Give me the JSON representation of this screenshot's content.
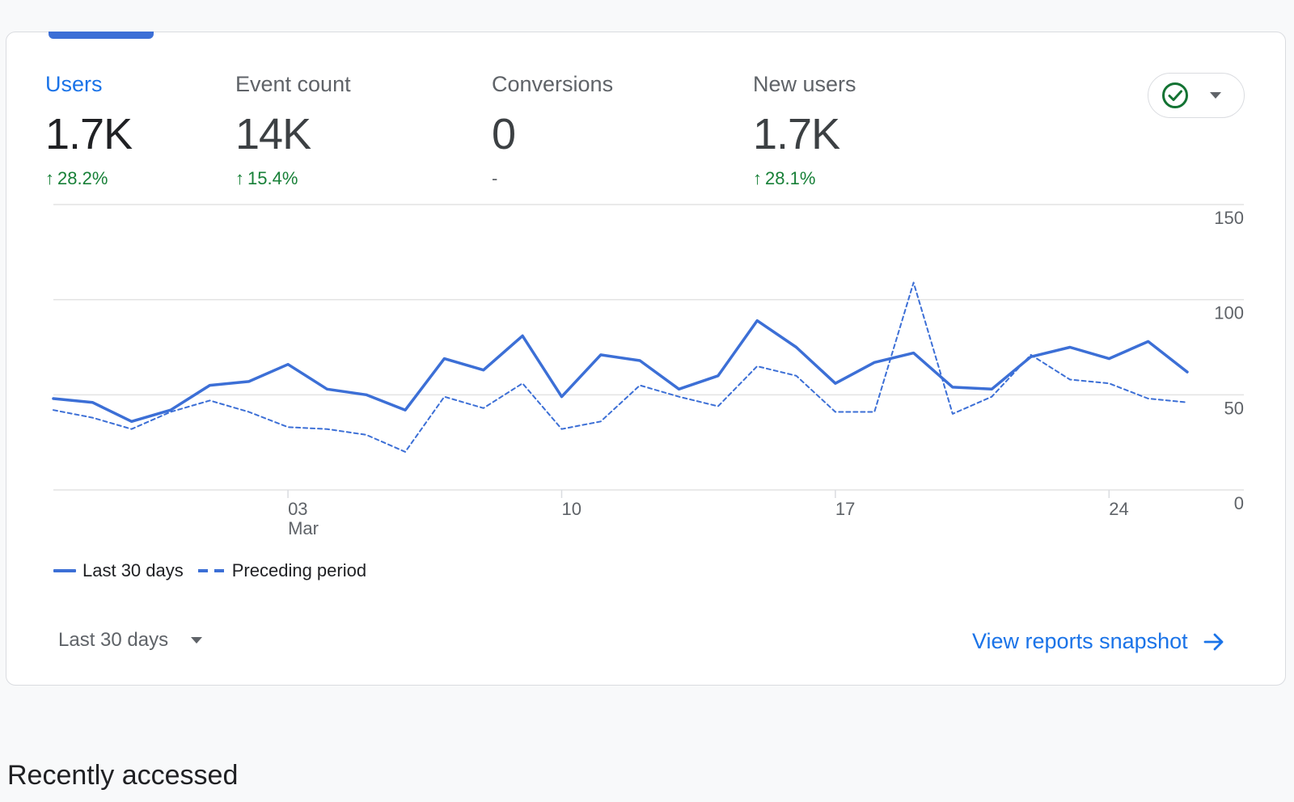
{
  "metrics": [
    {
      "label": "Users",
      "value": "1.7K",
      "change": "28.2%",
      "direction": "up"
    },
    {
      "label": "Event count",
      "value": "14K",
      "change": "15.4%",
      "direction": "up"
    },
    {
      "label": "Conversions",
      "value": "0",
      "change": "-",
      "direction": "none"
    },
    {
      "label": "New users",
      "value": "1.7K",
      "change": "28.1%",
      "direction": "up"
    }
  ],
  "status_icon": "check-circle-icon",
  "colors": {
    "accent": "#1a73e8",
    "series": "#3c6fd6",
    "positive": "#188038"
  },
  "chart_data": {
    "type": "line",
    "x": [
      "26",
      "27",
      "28",
      "29",
      "01",
      "02",
      "03",
      "04",
      "05",
      "06",
      "07",
      "08",
      "09",
      "10",
      "11",
      "12",
      "13",
      "14",
      "15",
      "16",
      "17",
      "18",
      "19",
      "20",
      "21",
      "22",
      "23",
      "24",
      "25",
      "26"
    ],
    "xticks": [
      "03",
      "10",
      "17",
      "24"
    ],
    "xtick_sub": "Mar",
    "ylim": [
      0,
      150
    ],
    "yticks": [
      0,
      50,
      100,
      150
    ],
    "ytick_labels": [
      "0",
      "50",
      "100",
      "150"
    ],
    "grid": true,
    "legend_position": "bottom-left",
    "series": [
      {
        "name": "Last 30 days",
        "style": "solid",
        "values": [
          48,
          46,
          36,
          42,
          55,
          57,
          66,
          53,
          50,
          42,
          69,
          63,
          81,
          49,
          71,
          68,
          53,
          60,
          89,
          75,
          56,
          67,
          72,
          54,
          53,
          70,
          75,
          69,
          78,
          62
        ]
      },
      {
        "name": "Preceding period",
        "style": "dashed",
        "values": [
          42,
          38,
          32,
          41,
          47,
          41,
          33,
          32,
          29,
          20,
          49,
          43,
          56,
          32,
          36,
          55,
          49,
          44,
          65,
          60,
          41,
          41,
          109,
          40,
          49,
          71,
          58,
          56,
          48,
          46
        ]
      }
    ]
  },
  "legend": {
    "current": "Last 30 days",
    "previous": "Preceding period"
  },
  "footer": {
    "range_label": "Last 30 days",
    "link_label": "View reports snapshot"
  },
  "section": {
    "title": "Recently accessed"
  }
}
